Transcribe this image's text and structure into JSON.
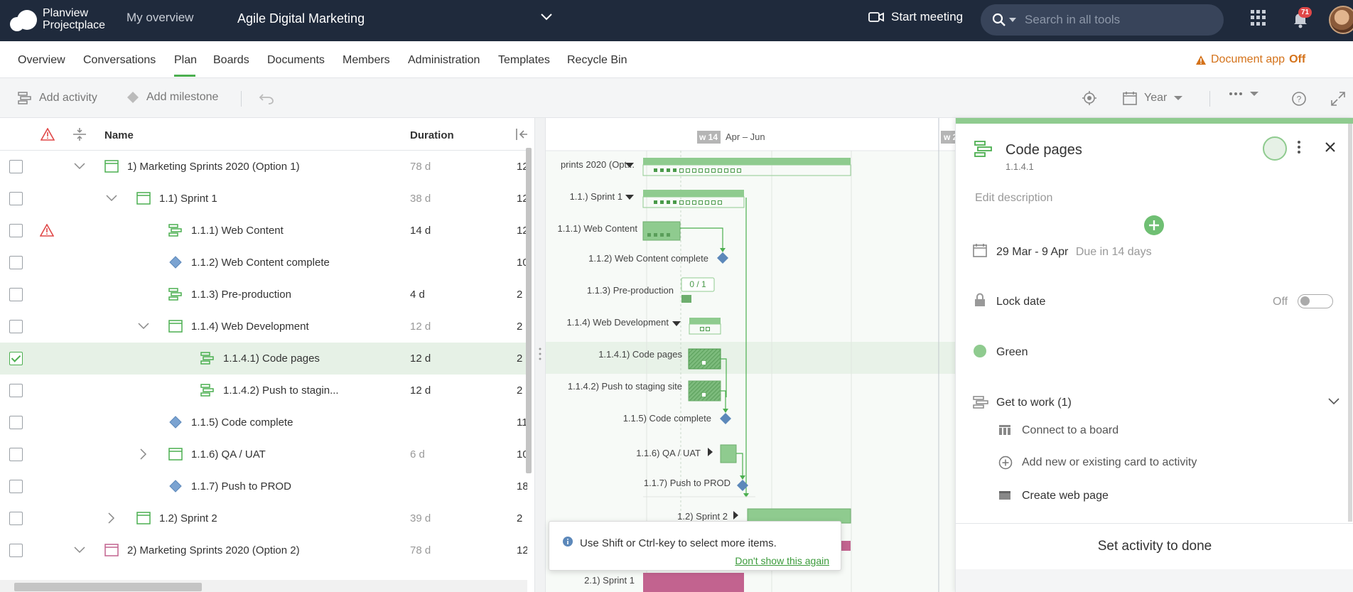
{
  "topbar": {
    "logo_line1": "Planview",
    "logo_line2": "Projectplace",
    "my_overview": "My overview",
    "project_title": "Agile Digital Marketing",
    "start_meeting": "Start meeting",
    "search_placeholder": "Search in all tools",
    "notification_count": "71"
  },
  "nav": {
    "tabs": [
      "Overview",
      "Conversations",
      "Plan",
      "Boards",
      "Documents",
      "Members",
      "Administration",
      "Templates",
      "Recycle Bin"
    ],
    "active_tab": "Plan",
    "document_app_label": "Document app",
    "document_app_state": "Off"
  },
  "toolbar": {
    "add_activity": "Add activity",
    "add_milestone": "Add milestone",
    "timescale": "Year"
  },
  "grid": {
    "col_name": "Name",
    "col_duration": "Duration",
    "rows": [
      {
        "name": "1) Marketing Sprints 2020 (Option 1)",
        "duration": "78 d",
        "clip": "12"
      },
      {
        "name": "1.1) Sprint 1",
        "duration": "38 d",
        "clip": "12"
      },
      {
        "name": "1.1.1) Web Content",
        "duration": "14 d",
        "clip": "12"
      },
      {
        "name": "1.1.2) Web Content complete",
        "duration": "",
        "clip": "10"
      },
      {
        "name": "1.1.3) Pre-production",
        "duration": "4 d",
        "clip": "2"
      },
      {
        "name": "1.1.4) Web Development",
        "duration": "12 d",
        "clip": "2"
      },
      {
        "name": "1.1.4.1) Code pages",
        "duration": "12 d",
        "clip": "2"
      },
      {
        "name": "1.1.4.2) Push to stagin...",
        "duration": "12 d",
        "clip": "2"
      },
      {
        "name": "1.1.5) Code complete",
        "duration": "",
        "clip": "11"
      },
      {
        "name": "1.1.6) QA / UAT",
        "duration": "6 d",
        "clip": "10"
      },
      {
        "name": "1.1.7) Push to PROD",
        "duration": "",
        "clip": "18"
      },
      {
        "name": "1.2) Sprint 2",
        "duration": "39 d",
        "clip": "2"
      },
      {
        "name": "2) Marketing Sprints 2020 (Option 2)",
        "duration": "78 d",
        "clip": "12"
      }
    ]
  },
  "gantt": {
    "week_badge": "w 14",
    "quarter_label": "Apr – Jun",
    "week_badge_2": "w 2",
    "progress_label": "0 / 1",
    "labels": [
      "prints 2020 (Opt...",
      "1.1.) Sprint 1",
      "1.1.1) Web Content",
      "1.1.2) Web Content complete",
      "1.1.3) Pre-production",
      "1.1.4) Web Development",
      "1.1.4.1) Code pages",
      "1.1.4.2) Push to staging site",
      "1.1.5) Code complete",
      "1.1.6) QA / UAT",
      "1.1.7) Push to PROD",
      "1.2) Sprint 2",
      "2.1) Sprint 1"
    ]
  },
  "tooltip": {
    "text": "Use Shift or Ctrl-key to select more items.",
    "dismiss": "Don't show this again"
  },
  "panel": {
    "title": "Code pages",
    "id": "1.1.4.1",
    "edit_description": "Edit description",
    "dates": "29 Mar - 9 Apr",
    "due": "Due in 14 days",
    "lock_date": "Lock date",
    "lock_state": "Off",
    "status": "Green",
    "get_to_work": "Get to work (1)",
    "connect_board": "Connect to a board",
    "add_card": "Add new or existing card to activity",
    "create_web_page": "Create web page",
    "done_button": "Set activity to done",
    "status_color": "#8fcb8f"
  }
}
